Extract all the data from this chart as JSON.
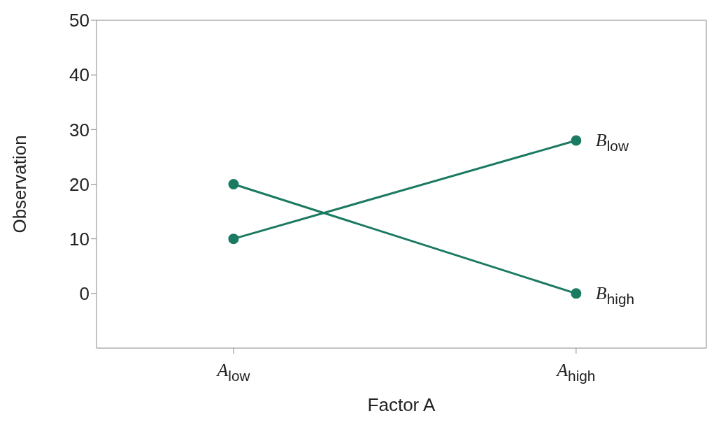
{
  "chart_data": {
    "type": "line",
    "xlabel": "Factor A",
    "ylabel": "Observation",
    "categories": [
      "A$_{low}$",
      "A$_{high}$"
    ],
    "series": [
      {
        "name": "B$_{low}$",
        "color": "#1b7a62",
        "values": [
          10,
          28
        ]
      },
      {
        "name": "B$_{high}$",
        "color": "#1b7a62",
        "values": [
          20,
          0
        ]
      }
    ],
    "ylim": [
      -10,
      50
    ],
    "yticks": [
      0,
      10,
      20,
      30,
      40,
      50
    ],
    "grid": false,
    "legend": false,
    "marker": "circle",
    "line_style": "solid"
  }
}
